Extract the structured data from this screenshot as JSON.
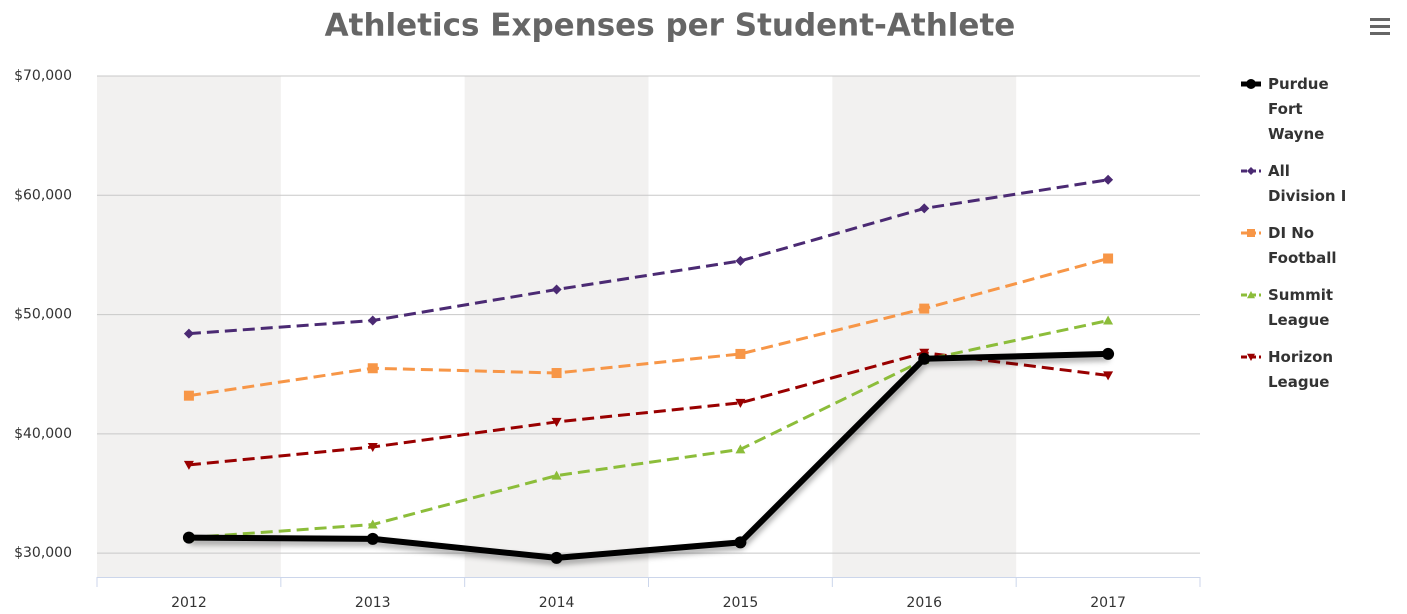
{
  "chart_data": {
    "type": "line",
    "title": "Athletics Expenses per Student-Athlete",
    "categories": [
      "2012",
      "2013",
      "2014",
      "2015",
      "2016",
      "2017"
    ],
    "series": [
      {
        "name": "Purdue Fort Wayne",
        "color": "#000000",
        "marker": "circle",
        "dashed": false,
        "values": [
          31300,
          31200,
          29600,
          30900,
          46300,
          46700
        ]
      },
      {
        "name": "All Division I",
        "color": "#4b2a73",
        "marker": "diamond",
        "dashed": true,
        "values": [
          48400,
          49500,
          52100,
          54500,
          58900,
          61300
        ]
      },
      {
        "name": "DI No Football",
        "color": "#f79647",
        "marker": "square",
        "dashed": true,
        "values": [
          43200,
          45500,
          45100,
          46700,
          50500,
          54700
        ]
      },
      {
        "name": "Summit League",
        "color": "#8cbd3a",
        "marker": "triangle",
        "dashed": true,
        "values": [
          31300,
          32400,
          36500,
          38700,
          46200,
          49500
        ]
      },
      {
        "name": "Horizon League",
        "color": "#990000",
        "marker": "triangle-down",
        "dashed": true,
        "values": [
          37400,
          38900,
          41000,
          42600,
          46800,
          44900
        ]
      }
    ],
    "ylim": [
      28000,
      70000
    ],
    "yticks": [
      {
        "value": 30000,
        "label": "$30,000"
      },
      {
        "value": 40000,
        "label": "$40,000"
      },
      {
        "value": 50000,
        "label": "$50,000"
      },
      {
        "value": 60000,
        "label": "$60,000"
      },
      {
        "value": 70000,
        "label": "$70,000"
      }
    ],
    "grid": true,
    "legend": "right"
  }
}
